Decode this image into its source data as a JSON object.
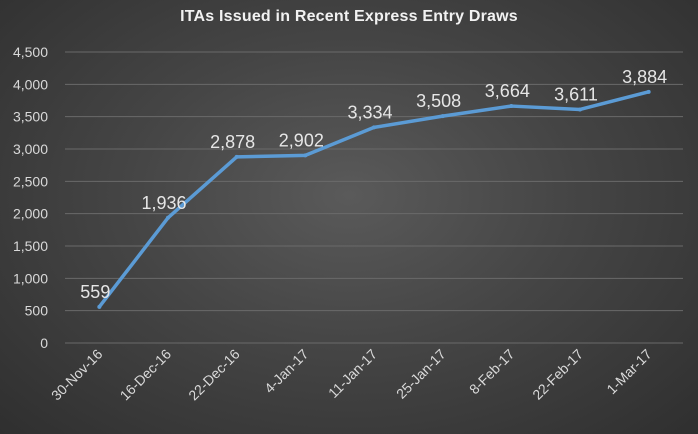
{
  "chart_data": {
    "type": "line",
    "title": "ITAs Issued in Recent Express Entry Draws",
    "xlabel": "",
    "ylabel": "",
    "categories": [
      "30-Nov-16",
      "16-Dec-16",
      "22-Dec-16",
      "4-Jan-17",
      "11-Jan-17",
      "25-Jan-17",
      "8-Feb-17",
      "22-Feb-17",
      "1-Mar-17"
    ],
    "series": [
      {
        "values": [
          559,
          1936,
          2878,
          2902,
          3334,
          3508,
          3664,
          3611,
          3884
        ]
      }
    ],
    "data_labels": [
      "559",
      "1,936",
      "2,878",
      "2,902",
      "3,334",
      "3,508",
      "3,664",
      "3,611",
      "3,884"
    ],
    "ylim": [
      0,
      4500
    ],
    "yticks": [
      0,
      500,
      1000,
      1500,
      2000,
      2500,
      3000,
      3500,
      4000,
      4500
    ],
    "ytick_labels": [
      "0",
      "500",
      "1,000",
      "1,500",
      "2,000",
      "2,500",
      "3,000",
      "3,500",
      "4,000",
      "4,500"
    ],
    "grid": true,
    "legend": "none",
    "colors": {
      "line": "#5b9bd5",
      "grid": "#6a6a6a",
      "text": "#d9d9d9",
      "title": "#f2f2f2"
    }
  }
}
